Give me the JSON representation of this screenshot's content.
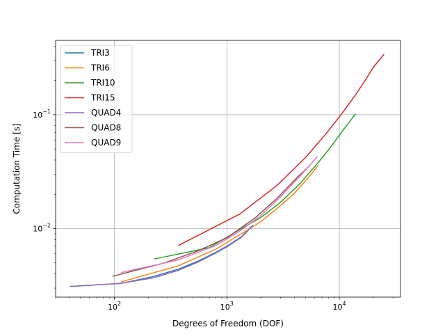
{
  "chart_data": {
    "type": "line",
    "title": "",
    "xlabel": "Degrees of Freedom (DOF)",
    "ylabel": "Computation Time [s]",
    "xscale": "log",
    "yscale": "log",
    "xlim": [
      30,
      35000
    ],
    "ylim": [
      0.0025,
      0.45
    ],
    "grid": true,
    "legend": "top-left",
    "x_ticks": [
      {
        "value": 100,
        "base": "10",
        "exp": "2"
      },
      {
        "value": 1000,
        "base": "10",
        "exp": "3"
      },
      {
        "value": 10000,
        "base": "10",
        "exp": "4"
      }
    ],
    "y_ticks": [
      {
        "value": 0.01,
        "base": "10",
        "exp": "−2"
      },
      {
        "value": 0.1,
        "base": "10",
        "exp": "−1"
      }
    ],
    "series": [
      {
        "name": "TRI3",
        "color": "#1f77b4",
        "x": [
          40,
          114,
          225,
          370,
          560,
          800,
          1050,
          1350,
          1700
        ],
        "y": [
          0.0031,
          0.0033,
          0.0038,
          0.0044,
          0.0052,
          0.0062,
          0.0072,
          0.0085,
          0.0107
        ]
      },
      {
        "name": "TRI6",
        "color": "#ff7f0e",
        "x": [
          114,
          370,
          800,
          1400,
          2000,
          2900,
          4000,
          5300,
          6500
        ],
        "y": [
          0.0034,
          0.0047,
          0.0066,
          0.0092,
          0.0115,
          0.0155,
          0.0205,
          0.028,
          0.036
        ]
      },
      {
        "name": "TRI10",
        "color": "#2ca02c",
        "x": [
          225,
          700,
          1300,
          2000,
          3000,
          4500,
          6500,
          8500,
          11000,
          14000
        ],
        "y": [
          0.0054,
          0.0068,
          0.0098,
          0.0125,
          0.017,
          0.025,
          0.038,
          0.053,
          0.075,
          0.102
        ]
      },
      {
        "name": "TRI15",
        "color": "#d62728",
        "x": [
          370,
          1300,
          2800,
          5000,
          7800,
          10500,
          14000,
          17500,
          20000,
          25000
        ],
        "y": [
          0.0071,
          0.0134,
          0.024,
          0.042,
          0.07,
          0.102,
          0.15,
          0.21,
          0.26,
          0.34
        ]
      },
      {
        "name": "QUAD4",
        "color": "#9467bd",
        "x": [
          40,
          114,
          225,
          370,
          560,
          800,
          1050,
          1350,
          1700
        ],
        "y": [
          0.0031,
          0.0033,
          0.0037,
          0.0043,
          0.0051,
          0.0061,
          0.0071,
          0.0084,
          0.0106
        ]
      },
      {
        "name": "QUAD8",
        "color": "#8c564b",
        "x": [
          96,
          280,
          560,
          1000,
          1800,
          2800,
          4200,
          5500
        ],
        "y": [
          0.0038,
          0.005,
          0.0064,
          0.0083,
          0.0125,
          0.0185,
          0.028,
          0.036
        ]
      },
      {
        "name": "QUAD9",
        "color": "#e377c2",
        "x": [
          114,
          370,
          800,
          1300,
          2000,
          3000,
          4500,
          6400
        ],
        "y": [
          0.0041,
          0.0053,
          0.0071,
          0.0095,
          0.013,
          0.019,
          0.029,
          0.043
        ]
      }
    ]
  }
}
